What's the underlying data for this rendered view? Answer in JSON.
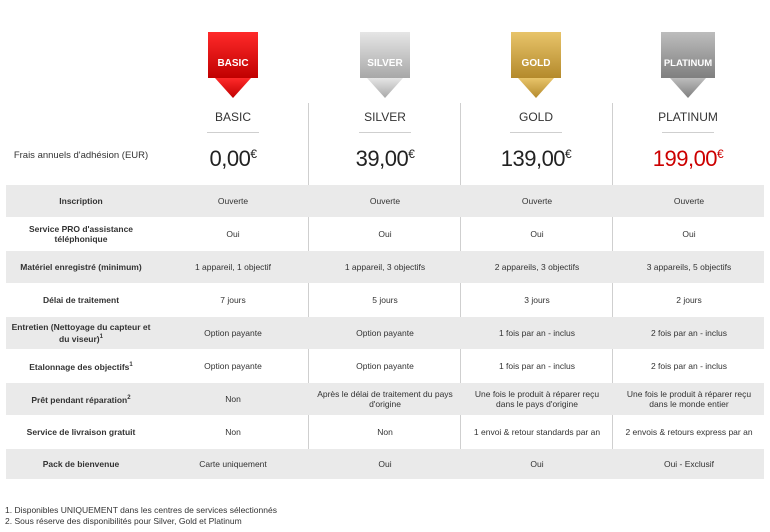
{
  "colors": {
    "basic": "#e30613",
    "silver": "#bdbdbd",
    "gold": "#c9a343",
    "platinum": "#9a9a9a",
    "band": "#eaeaea",
    "price_highlight": "#cc0000"
  },
  "tiers": [
    {
      "badge_text": "BASIC",
      "name": "BASIC",
      "price": "0,00",
      "currency": "€"
    },
    {
      "badge_text": "SILVER",
      "name": "SILVER",
      "price": "39,00",
      "currency": "€"
    },
    {
      "badge_text": "GOLD",
      "name": "GOLD",
      "price": "139,00",
      "currency": "€"
    },
    {
      "badge_text": "PLATINUM",
      "name": "PLATINUM",
      "price": "199,00",
      "currency": "€"
    }
  ],
  "price_label": "Frais annuels d'adhésion (EUR)",
  "rows": [
    {
      "label": "Inscription",
      "values": [
        "Ouverte",
        "Ouverte",
        "Ouverte",
        "Ouverte"
      ]
    },
    {
      "label": "Service PRO d'assistance téléphonique",
      "values": [
        "Oui",
        "Oui",
        "Oui",
        "Oui"
      ]
    },
    {
      "label": "Matériel enregistré (minimum)",
      "values": [
        "1 appareil, 1 objectif",
        "1 appareil, 3 objectifs",
        "2 appareils, 3 objectifs",
        "3 appareils, 5 objectifs"
      ]
    },
    {
      "label": "Délai de traitement",
      "values": [
        "7 jours",
        "5 jours",
        "3 jours",
        "2 jours"
      ]
    },
    {
      "label": "Entretien (Nettoyage du capteur et du viseur)",
      "label_sup": "1",
      "values": [
        "Option payante",
        "Option payante",
        "1 fois par an - inclus",
        "2 fois par an - inclus"
      ]
    },
    {
      "label": "Etalonnage des objectifs",
      "label_sup": "1",
      "values": [
        "Option payante",
        "Option payante",
        "1 fois par an - inclus",
        "2 fois par an - inclus"
      ]
    },
    {
      "label": "Prêt pendant réparation",
      "label_sup": "2",
      "values": [
        "Non",
        "Après le délai de traitement du pays d'origine",
        "Une fois le produit à réparer reçu dans le pays d'origine",
        "Une fois le produit à réparer reçu dans le monde entier"
      ]
    },
    {
      "label": "Service de livraison gratuit",
      "values": [
        "Non",
        "Non",
        "1 envoi & retour standards par an",
        "2 envois & retours express par an"
      ]
    },
    {
      "label": "Pack de bienvenue",
      "values": [
        "Carte uniquement",
        "Oui",
        "Oui",
        "Oui - Exclusif"
      ]
    }
  ],
  "footnotes": [
    "1. Disponibles UNIQUEMENT dans les centres de services sélectionnés",
    "2. Sous réserve des disponibilités pour Silver, Gold et Platinum"
  ]
}
